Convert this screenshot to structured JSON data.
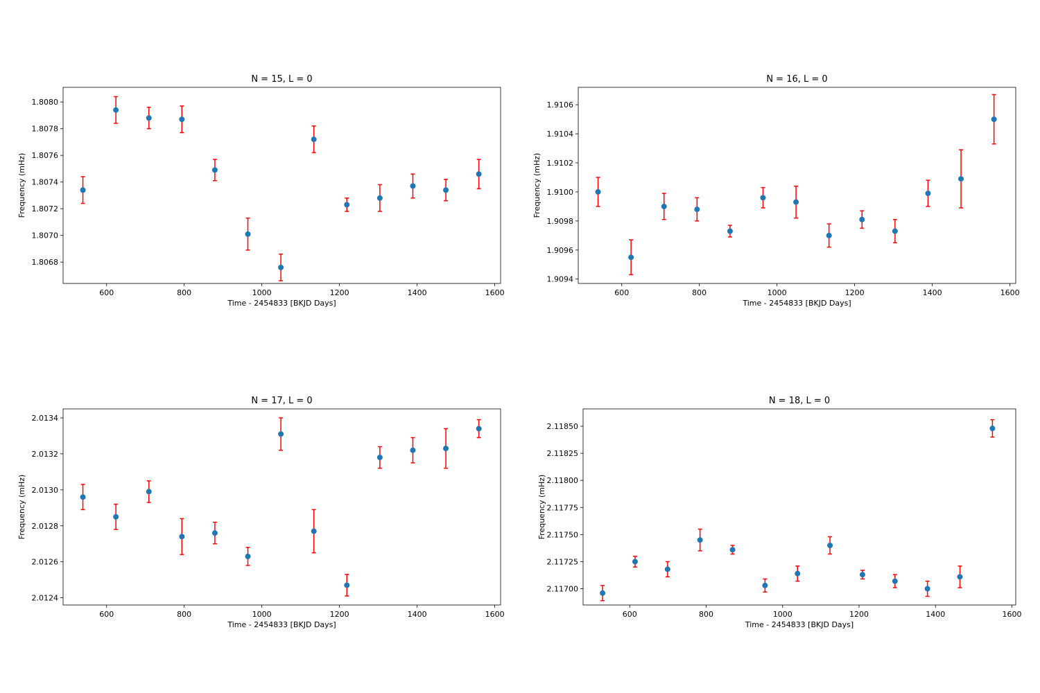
{
  "colors": {
    "marker": "#1f77b4",
    "errorbar": "#ff0000",
    "axes": "#000000",
    "background": "#ffffff"
  },
  "chart_data": [
    {
      "type": "scatter",
      "title": "N = 15, L = 0",
      "xlabel": "Time - 2454833 [BKJD Days]",
      "ylabel": "Frequency (mHz)",
      "xlim": [
        488,
        1615
      ],
      "ylim": [
        1.80664,
        1.80811
      ],
      "xticks": [
        600,
        800,
        1000,
        1200,
        1400,
        1600
      ],
      "xtick_labels": [
        "600",
        "800",
        "1000",
        "1200",
        "1400",
        "1600"
      ],
      "yticks": [
        1.8068,
        1.807,
        1.8072,
        1.8074,
        1.8076,
        1.8078,
        1.808
      ],
      "ytick_labels": [
        "1.8068",
        "1.8070",
        "1.8072",
        "1.8074",
        "1.8076",
        "1.8078",
        "1.8080"
      ],
      "grid": false,
      "legend": false,
      "x": [
        539,
        624,
        709,
        794,
        879,
        964,
        1049,
        1134,
        1219,
        1304,
        1389,
        1474,
        1559
      ],
      "y": [
        1.80734,
        1.80794,
        1.80788,
        1.80787,
        1.80749,
        1.80701,
        1.80676,
        1.80772,
        1.80723,
        1.80728,
        1.80737,
        1.80734,
        1.80746
      ],
      "yerr": [
        0.0001,
        0.0001,
        8e-05,
        0.0001,
        8e-05,
        0.00012,
        0.0001,
        0.0001,
        5e-05,
        0.0001,
        9e-05,
        8e-05,
        0.00011
      ]
    },
    {
      "type": "scatter",
      "title": "N = 16, L = 0",
      "xlabel": "Time - 2454833 [BKJD Days]",
      "ylabel": "Frequency (mHz)",
      "xlim": [
        488,
        1615
      ],
      "ylim": [
        1.90937,
        1.91072
      ],
      "xticks": [
        600,
        800,
        1000,
        1200,
        1400,
        1600
      ],
      "xtick_labels": [
        "600",
        "800",
        "1000",
        "1200",
        "1400",
        "1600"
      ],
      "yticks": [
        1.9094,
        1.9096,
        1.9098,
        1.91,
        1.9102,
        1.9104,
        1.9106
      ],
      "ytick_labels": [
        "1.9094",
        "1.9096",
        "1.9098",
        "1.9100",
        "1.9102",
        "1.9104",
        "1.9106"
      ],
      "grid": false,
      "legend": false,
      "x": [
        539,
        624,
        709,
        794,
        879,
        964,
        1049,
        1134,
        1219,
        1304,
        1389,
        1474,
        1559
      ],
      "y": [
        1.91,
        1.90955,
        1.9099,
        1.90988,
        1.90973,
        1.90996,
        1.90993,
        1.9097,
        1.90981,
        1.90973,
        1.90999,
        1.91009,
        1.9105
      ],
      "yerr": [
        0.0001,
        0.00012,
        9e-05,
        8e-05,
        4e-05,
        7e-05,
        0.00011,
        8e-05,
        6e-05,
        8e-05,
        9e-05,
        0.0002,
        0.00017
      ]
    },
    {
      "type": "scatter",
      "title": "N = 17, L = 0",
      "xlabel": "Time - 2454833 [BKJD Days]",
      "ylabel": "Frequency (mHz)",
      "xlim": [
        488,
        1615
      ],
      "ylim": [
        2.01236,
        2.01345
      ],
      "xticks": [
        600,
        800,
        1000,
        1200,
        1400,
        1600
      ],
      "xtick_labels": [
        "600",
        "800",
        "1000",
        "1200",
        "1400",
        "1600"
      ],
      "yticks": [
        2.0124,
        2.0126,
        2.0128,
        2.013,
        2.0132,
        2.0134
      ],
      "ytick_labels": [
        "2.0124",
        "2.0126",
        "2.0128",
        "2.0130",
        "2.0132",
        "2.0134"
      ],
      "grid": false,
      "legend": false,
      "x": [
        539,
        624,
        709,
        794,
        879,
        964,
        1049,
        1134,
        1219,
        1304,
        1389,
        1474,
        1559
      ],
      "y": [
        2.01296,
        2.01285,
        2.01299,
        2.01274,
        2.01276,
        2.01263,
        2.01331,
        2.01277,
        2.01247,
        2.01318,
        2.01322,
        2.01323,
        2.01334
      ],
      "yerr": [
        7e-05,
        7e-05,
        6e-05,
        0.0001,
        6e-05,
        5e-05,
        9e-05,
        0.00012,
        6e-05,
        6e-05,
        7e-05,
        0.00011,
        5e-05
      ]
    },
    {
      "type": "scatter",
      "title": "N = 18, L = 0",
      "xlabel": "Time - 2454833 [BKJD Days]",
      "ylabel": "Frequency (mHz)",
      "xlim": [
        478,
        1610
      ],
      "ylim": [
        2.11685,
        2.11866
      ],
      "xticks": [
        600,
        800,
        1000,
        1200,
        1400,
        1600
      ],
      "xtick_labels": [
        "600",
        "800",
        "1000",
        "1200",
        "1400",
        "1600"
      ],
      "yticks": [
        2.117,
        2.11725,
        2.1175,
        2.11775,
        2.118,
        2.11825,
        2.1185
      ],
      "ytick_labels": [
        "2.11700",
        "2.11725",
        "2.11750",
        "2.11775",
        "2.11800",
        "2.11825",
        "2.11850"
      ],
      "grid": false,
      "legend": false,
      "x": [
        529,
        614,
        699,
        784,
        869,
        954,
        1039,
        1124,
        1209,
        1294,
        1379,
        1464,
        1549
      ],
      "y": [
        2.11696,
        2.11725,
        2.11718,
        2.11745,
        2.11736,
        2.11703,
        2.11714,
        2.1174,
        2.11713,
        2.11707,
        2.117,
        2.11711,
        2.11848
      ],
      "yerr": [
        7e-05,
        5e-05,
        7e-05,
        0.0001,
        4e-05,
        6e-05,
        7e-05,
        8e-05,
        4e-05,
        6e-05,
        7e-05,
        0.0001,
        8e-05
      ]
    }
  ]
}
